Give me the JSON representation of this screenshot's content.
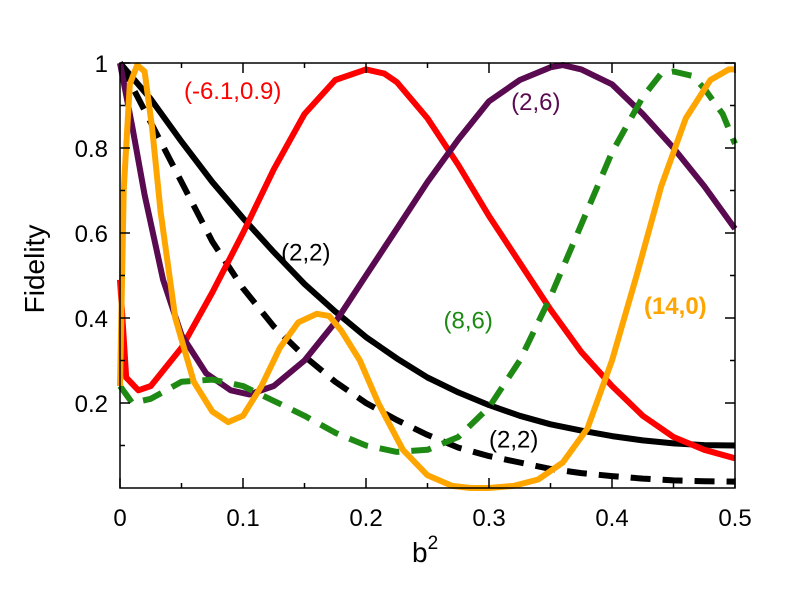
{
  "chart_data": {
    "type": "line",
    "xlabel": "b",
    "xlabel_superscript": "2",
    "ylabel": "Fidelity",
    "xlim": [
      0,
      0.5
    ],
    "ylim": [
      0,
      1
    ],
    "xticks": [
      0,
      0.1,
      0.2,
      0.3,
      0.4,
      0.5
    ],
    "xtick_labels": [
      "0",
      "0.1",
      "0.2",
      "0.3",
      "0.4",
      "0.5"
    ],
    "yticks": [
      0.2,
      0.4,
      0.6,
      0.8,
      1
    ],
    "ytick_labels": [
      "0.2",
      "0.4",
      "0.6",
      "0.8",
      "1"
    ],
    "grid": false,
    "series": [
      {
        "name": "(2,2)",
        "color": "#000000",
        "style": "solid",
        "x": [
          0,
          0.025,
          0.05,
          0.075,
          0.1,
          0.125,
          0.15,
          0.175,
          0.2,
          0.225,
          0.25,
          0.275,
          0.3,
          0.325,
          0.35,
          0.375,
          0.4,
          0.425,
          0.45,
          0.475,
          0.5
        ],
        "y": [
          1.0,
          0.915,
          0.815,
          0.72,
          0.635,
          0.555,
          0.48,
          0.415,
          0.355,
          0.305,
          0.26,
          0.225,
          0.195,
          0.17,
          0.15,
          0.135,
          0.122,
          0.112,
          0.105,
          0.101,
          0.1
        ]
      },
      {
        "name": "(2,2)",
        "color": "#000000",
        "style": "dashed",
        "x": [
          0,
          0.025,
          0.05,
          0.075,
          0.1,
          0.125,
          0.15,
          0.175,
          0.2,
          0.225,
          0.25,
          0.275,
          0.3,
          0.325,
          0.35,
          0.375,
          0.4,
          0.425,
          0.45,
          0.475,
          0.5
        ],
        "y": [
          1.0,
          0.86,
          0.72,
          0.58,
          0.47,
          0.38,
          0.31,
          0.25,
          0.2,
          0.16,
          0.125,
          0.095,
          0.075,
          0.06,
          0.045,
          0.035,
          0.028,
          0.022,
          0.018,
          0.016,
          0.015
        ]
      },
      {
        "name": "(-6.1,0.9)",
        "color": "#ff0000",
        "style": "solid",
        "x": [
          0,
          0.005,
          0.015,
          0.025,
          0.05,
          0.075,
          0.1,
          0.125,
          0.15,
          0.175,
          0.2,
          0.215,
          0.225,
          0.25,
          0.275,
          0.3,
          0.325,
          0.35,
          0.375,
          0.4,
          0.425,
          0.45,
          0.475,
          0.5
        ],
        "y": [
          0.49,
          0.26,
          0.23,
          0.24,
          0.33,
          0.46,
          0.6,
          0.75,
          0.88,
          0.96,
          0.985,
          0.975,
          0.955,
          0.87,
          0.76,
          0.64,
          0.53,
          0.42,
          0.32,
          0.24,
          0.17,
          0.12,
          0.09,
          0.07
        ]
      },
      {
        "name": "(2,6)",
        "color": "#5a0a50",
        "style": "solid",
        "x": [
          0,
          0.01,
          0.02,
          0.035,
          0.05,
          0.07,
          0.09,
          0.105,
          0.125,
          0.15,
          0.175,
          0.2,
          0.225,
          0.25,
          0.275,
          0.3,
          0.325,
          0.35,
          0.36,
          0.375,
          0.4,
          0.425,
          0.45,
          0.475,
          0.5
        ],
        "y": [
          1.0,
          0.85,
          0.69,
          0.49,
          0.36,
          0.27,
          0.23,
          0.22,
          0.24,
          0.3,
          0.39,
          0.5,
          0.61,
          0.72,
          0.82,
          0.91,
          0.96,
          0.99,
          0.995,
          0.985,
          0.95,
          0.88,
          0.8,
          0.71,
          0.61
        ]
      },
      {
        "name": "(8,6)",
        "color": "#1e8a14",
        "style": "dashed",
        "x": [
          0,
          0.01,
          0.025,
          0.05,
          0.075,
          0.1,
          0.125,
          0.15,
          0.175,
          0.2,
          0.225,
          0.25,
          0.275,
          0.3,
          0.325,
          0.35,
          0.375,
          0.4,
          0.425,
          0.44,
          0.45,
          0.465,
          0.475,
          0.49,
          0.5
        ],
        "y": [
          0.24,
          0.2,
          0.21,
          0.25,
          0.255,
          0.24,
          0.205,
          0.17,
          0.13,
          0.1,
          0.085,
          0.09,
          0.12,
          0.19,
          0.3,
          0.45,
          0.62,
          0.79,
          0.92,
          0.975,
          0.98,
          0.97,
          0.94,
          0.88,
          0.81
        ]
      },
      {
        "name": "(14,0)",
        "color": "#ffa500",
        "style": "solid",
        "x": [
          0,
          0.003,
          0.008,
          0.014,
          0.02,
          0.026,
          0.033,
          0.045,
          0.06,
          0.075,
          0.088,
          0.1,
          0.115,
          0.13,
          0.145,
          0.16,
          0.17,
          0.18,
          0.195,
          0.21,
          0.23,
          0.25,
          0.27,
          0.285,
          0.3,
          0.32,
          0.34,
          0.36,
          0.38,
          0.4,
          0.42,
          0.44,
          0.46,
          0.48,
          0.495,
          0.5
        ],
        "y": [
          0.24,
          0.7,
          0.95,
          0.995,
          0.98,
          0.85,
          0.65,
          0.4,
          0.25,
          0.18,
          0.155,
          0.17,
          0.24,
          0.33,
          0.39,
          0.41,
          0.405,
          0.37,
          0.3,
          0.2,
          0.09,
          0.03,
          0.005,
          0.0,
          0.0,
          0.005,
          0.02,
          0.06,
          0.14,
          0.3,
          0.5,
          0.71,
          0.87,
          0.96,
          0.985,
          0.985
        ]
      }
    ],
    "annotations": [
      {
        "text": "(-6.1,0.9)",
        "color": "#ff0000",
        "x": 0.052,
        "y": 0.915,
        "bold": false
      },
      {
        "text": "(2,6)",
        "color": "#5a0a50",
        "x": 0.318,
        "y": 0.89,
        "bold": false
      },
      {
        "text": "(2,2)",
        "color": "#000000",
        "x": 0.131,
        "y": 0.535,
        "bold": false
      },
      {
        "text": "(8,6)",
        "color": "#1e8a14",
        "x": 0.263,
        "y": 0.375,
        "bold": false
      },
      {
        "text": "(14,0)",
        "color": "#ffa500",
        "x": 0.426,
        "y": 0.41,
        "bold": true
      },
      {
        "text": "(2,2)",
        "color": "#000000",
        "x": 0.3,
        "y": 0.095,
        "bold": false
      }
    ]
  }
}
